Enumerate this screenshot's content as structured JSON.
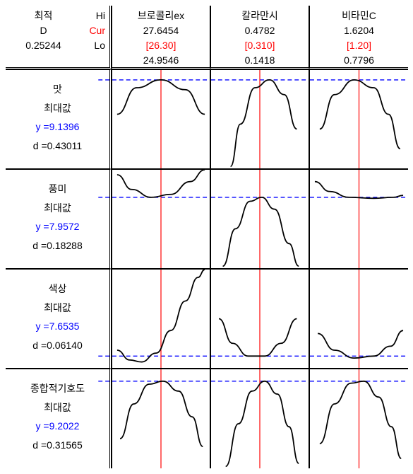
{
  "header": {
    "left": {
      "title1": "최적",
      "title2": "D",
      "value": "0.25244",
      "hi": "Hi",
      "cur": "Cur",
      "lo": "Lo"
    },
    "factors": [
      {
        "name": "브로콜리ex",
        "hi": "27.6454",
        "cur": "[26.30]",
        "lo": "24.9546"
      },
      {
        "name": "칼라만시",
        "hi": "0.4782",
        "cur": "[0.310]",
        "lo": "0.1418"
      },
      {
        "name": "비타민C",
        "hi": "1.6204",
        "cur": "[1.20]",
        "lo": "0.7796"
      }
    ]
  },
  "rows": [
    {
      "name": "맛",
      "sub": "최대값",
      "y_label": "y =9.1396",
      "d_label": "d =0.43011"
    },
    {
      "name": "풍미",
      "sub": "최대값",
      "y_label": "y =7.9572",
      "d_label": "d =0.18288"
    },
    {
      "name": "색상",
      "sub": "최대값",
      "y_label": "y =7.6535",
      "d_label": "d =0.06140"
    },
    {
      "name": "종합적기호도",
      "sub": "최대값",
      "y_label": "y =9.2022",
      "d_label": "d =0.31565"
    }
  ],
  "style": {
    "curve_color": "#000000",
    "curve_width": 1.8,
    "vline_color": "#ff0000",
    "vline_width": 1.2,
    "hline_color": "#0000ff",
    "hline_width": 1.4,
    "hline_dash": "6,4"
  },
  "cells": [
    [
      {
        "vx": 0.5,
        "hy": 0.1,
        "curve": [
          [
            0.05,
            0.45
          ],
          [
            0.25,
            0.18
          ],
          [
            0.5,
            0.1
          ],
          [
            0.75,
            0.2
          ],
          [
            0.95,
            0.45
          ]
        ]
      },
      {
        "vx": 0.5,
        "hy": 0.1,
        "curve": [
          [
            0.2,
            0.98
          ],
          [
            0.3,
            0.55
          ],
          [
            0.45,
            0.18
          ],
          [
            0.6,
            0.1
          ],
          [
            0.75,
            0.25
          ],
          [
            0.88,
            0.6
          ]
        ]
      },
      {
        "vx": 0.5,
        "hy": 0.1,
        "curve": [
          [
            0.1,
            0.6
          ],
          [
            0.25,
            0.25
          ],
          [
            0.45,
            0.1
          ],
          [
            0.65,
            0.18
          ],
          [
            0.8,
            0.45
          ],
          [
            0.92,
            0.8
          ]
        ]
      }
    ],
    [
      {
        "vx": 0.5,
        "hy": 0.28,
        "curve": [
          [
            0.05,
            0.05
          ],
          [
            0.2,
            0.2
          ],
          [
            0.4,
            0.28
          ],
          [
            0.6,
            0.25
          ],
          [
            0.8,
            0.12
          ],
          [
            0.95,
            0.0
          ]
        ]
      },
      {
        "vx": 0.5,
        "hy": 0.28,
        "curve": [
          [
            0.12,
            0.98
          ],
          [
            0.25,
            0.6
          ],
          [
            0.4,
            0.32
          ],
          [
            0.52,
            0.28
          ],
          [
            0.65,
            0.4
          ],
          [
            0.8,
            0.75
          ],
          [
            0.9,
            0.98
          ]
        ]
      },
      {
        "vx": 0.5,
        "hy": 0.28,
        "curve": [
          [
            0.05,
            0.12
          ],
          [
            0.2,
            0.22
          ],
          [
            0.4,
            0.28
          ],
          [
            0.65,
            0.29
          ],
          [
            0.85,
            0.28
          ],
          [
            0.95,
            0.26
          ]
        ]
      }
    ],
    [
      {
        "vx": 0.5,
        "hy": 0.88,
        "curve": [
          [
            0.05,
            0.82
          ],
          [
            0.18,
            0.92
          ],
          [
            0.3,
            0.94
          ],
          [
            0.45,
            0.85
          ],
          [
            0.6,
            0.62
          ],
          [
            0.75,
            0.32
          ],
          [
            0.88,
            0.08
          ],
          [
            0.95,
            0.0
          ]
        ]
      },
      {
        "vx": 0.5,
        "hy": 0.88,
        "curve": [
          [
            0.08,
            0.5
          ],
          [
            0.22,
            0.75
          ],
          [
            0.38,
            0.88
          ],
          [
            0.55,
            0.88
          ],
          [
            0.72,
            0.75
          ],
          [
            0.88,
            0.5
          ]
        ]
      },
      {
        "vx": 0.5,
        "hy": 0.88,
        "curve": [
          [
            0.08,
            0.65
          ],
          [
            0.25,
            0.82
          ],
          [
            0.45,
            0.9
          ],
          [
            0.65,
            0.88
          ],
          [
            0.82,
            0.78
          ],
          [
            0.95,
            0.62
          ]
        ]
      }
    ],
    [
      {
        "vx": 0.5,
        "hy": 0.12,
        "curve": [
          [
            0.08,
            0.7
          ],
          [
            0.22,
            0.35
          ],
          [
            0.38,
            0.15
          ],
          [
            0.52,
            0.12
          ],
          [
            0.68,
            0.22
          ],
          [
            0.82,
            0.48
          ],
          [
            0.93,
            0.78
          ]
        ]
      },
      {
        "vx": 0.5,
        "hy": 0.12,
        "curve": [
          [
            0.15,
            0.98
          ],
          [
            0.28,
            0.55
          ],
          [
            0.42,
            0.22
          ],
          [
            0.55,
            0.12
          ],
          [
            0.68,
            0.25
          ],
          [
            0.8,
            0.58
          ],
          [
            0.9,
            0.95
          ]
        ]
      },
      {
        "vx": 0.5,
        "hy": 0.12,
        "curve": [
          [
            0.1,
            0.75
          ],
          [
            0.25,
            0.35
          ],
          [
            0.42,
            0.14
          ],
          [
            0.55,
            0.12
          ],
          [
            0.7,
            0.28
          ],
          [
            0.83,
            0.58
          ],
          [
            0.93,
            0.9
          ]
        ]
      }
    ]
  ]
}
